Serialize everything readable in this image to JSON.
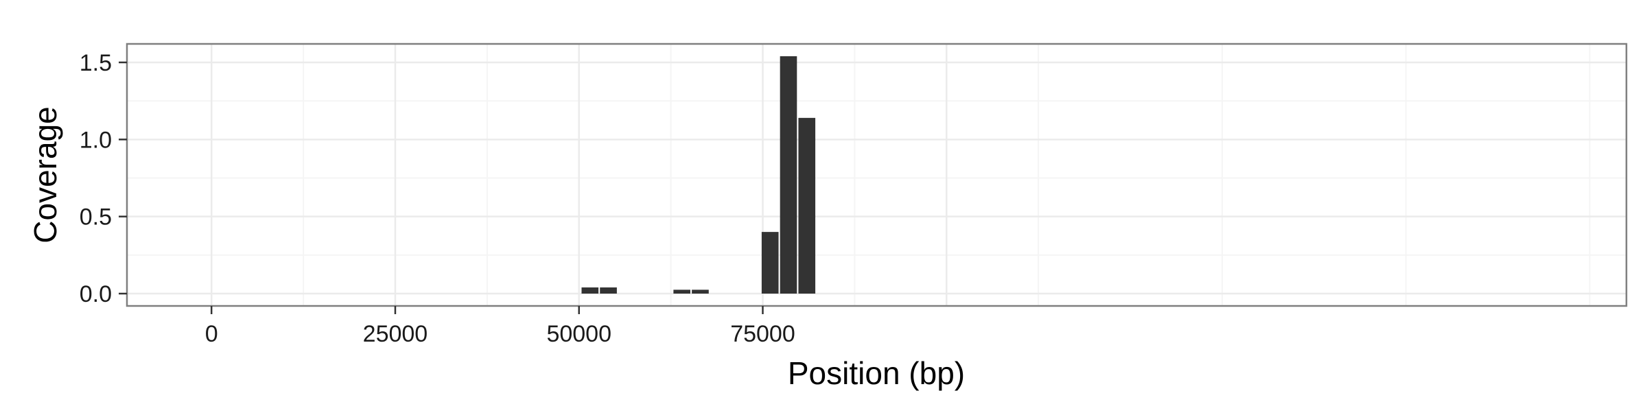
{
  "chart_data": {
    "type": "bar",
    "title": "",
    "xlabel": "Position (bp)",
    "ylabel": "Coverage",
    "xlim": [
      -11500,
      192500
    ],
    "ylim": [
      -0.08,
      1.62
    ],
    "x_ticks": [
      0,
      25000,
      50000,
      75000
    ],
    "x_tick_labels": [
      "0",
      "25000",
      "50000",
      "75000"
    ],
    "y_ticks": [
      0.0,
      0.5,
      1.0,
      1.5
    ],
    "y_tick_labels": [
      "0.0",
      "0.5",
      "1.0",
      "1.5"
    ],
    "bar_width": 2300,
    "x": [
      51500,
      54000,
      64000,
      66500,
      76000,
      78500,
      81000
    ],
    "values": [
      0.04,
      0.04,
      0.025,
      0.025,
      0.4,
      1.54,
      1.14
    ],
    "grid": true,
    "legend": "none",
    "colors": {
      "bar": "#333333",
      "panel_border": "#7f7f7f",
      "grid_major": "#ebebeb",
      "grid_minor": "#f5f5f5"
    }
  }
}
